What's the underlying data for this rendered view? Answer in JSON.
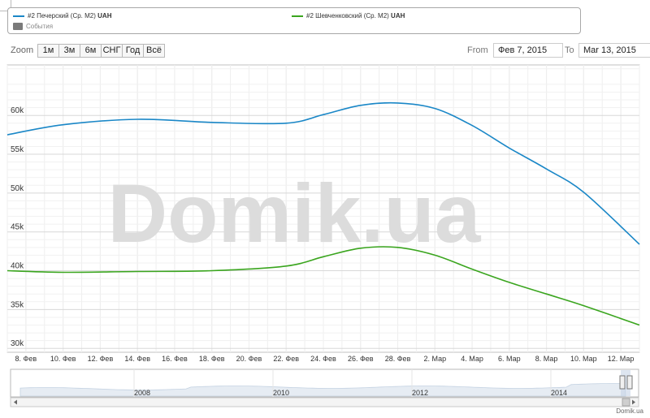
{
  "legend": {
    "series": [
      {
        "name": "#2 Печерский (Ср. М2)",
        "unit": "UAH",
        "color": "#1a87c7"
      },
      {
        "name": "#2 Шевченковский (Ср. М2)",
        "unit": "UAH",
        "color": "#3aa51e"
      }
    ],
    "events_label": "События"
  },
  "toolbar": {
    "zoom_label": "Zoom",
    "zoom_buttons": [
      "1м",
      "3м",
      "6м",
      "СНГ",
      "Год",
      "Всё"
    ],
    "from_label": "From",
    "from_value": "Фев 7, 2015",
    "to_label": "To",
    "to_value": "Mar 13, 2015"
  },
  "watermark": "Domik.ua",
  "footer_credit": "Domik.ua",
  "navigator": {
    "year_labels": [
      "2008",
      "2010",
      "2012",
      "2014"
    ]
  },
  "chart_data": {
    "type": "line",
    "x_tick_labels": [
      "8. Фев",
      "10. Фев",
      "12. Фев",
      "14. Фев",
      "16. Фев",
      "18. Фев",
      "20. Фев",
      "22. Фев",
      "24. Фев",
      "26. Фев",
      "28. Фев",
      "2. Мар",
      "4. Мар",
      "6. Мар",
      "8. Мар",
      "10. Мар",
      "12. Мар"
    ],
    "y_tick_labels": [
      "30k",
      "35k",
      "40k",
      "45k",
      "50k",
      "55k",
      "60k"
    ],
    "y_ticks": [
      30000,
      35000,
      40000,
      45000,
      50000,
      55000,
      60000
    ],
    "ylim": [
      29500,
      66500
    ],
    "x_start": "2015-02-07",
    "x_end": "2015-03-13",
    "x": [
      "2015-02-07",
      "2015-02-10",
      "2015-02-14",
      "2015-02-18",
      "2015-02-22",
      "2015-02-24",
      "2015-02-26",
      "2015-02-28",
      "2015-03-02",
      "2015-03-04",
      "2015-03-06",
      "2015-03-08",
      "2015-03-10",
      "2015-03-13"
    ],
    "series": [
      {
        "name": "#2 Печерский (Ср. М2)",
        "color": "#1a87c7",
        "values": [
          57500,
          58800,
          59500,
          59100,
          59000,
          60100,
          61300,
          61600,
          60900,
          58700,
          55800,
          53100,
          50100,
          43400
        ]
      },
      {
        "name": "#2 Шевченковский (Ср. М2)",
        "color": "#3aa51e",
        "values": [
          40000,
          39800,
          39900,
          40000,
          40600,
          41800,
          42900,
          43000,
          42000,
          40200,
          38500,
          37000,
          35500,
          33000
        ]
      }
    ],
    "grid": true,
    "legend_position": "top"
  }
}
